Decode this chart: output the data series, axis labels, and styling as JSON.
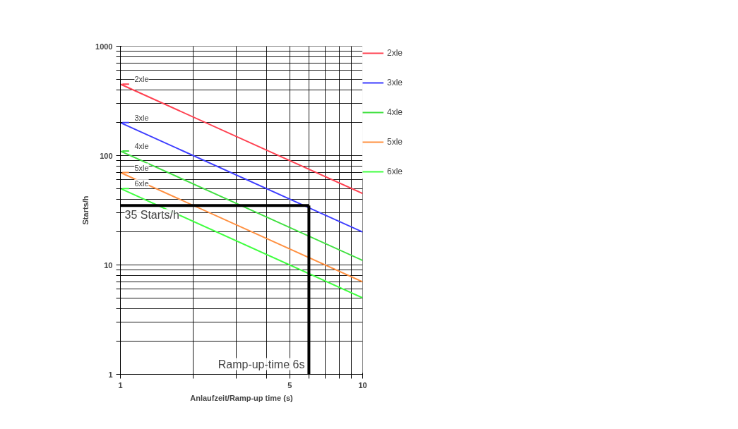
{
  "chart_data": {
    "type": "line",
    "xlabel": "Anlaufzeit/Ramp-up time (s)",
    "ylabel": "Starts/h",
    "log": "xy",
    "grid": true,
    "legend": "right",
    "marker": "none",
    "line_style": "solid",
    "x": [
      1,
      10
    ],
    "series": [
      {
        "name": "2xle",
        "color": "#ff4050",
        "values": [
          450,
          45
        ]
      },
      {
        "name": "3xle",
        "color": "#3c3cff",
        "values": [
          200,
          20
        ]
      },
      {
        "name": "4xle",
        "color": "#40e040",
        "values": [
          110,
          11
        ]
      },
      {
        "name": "5xle",
        "color": "#ff9040",
        "values": [
          70,
          7
        ]
      },
      {
        "name": "6xle",
        "color": "#40ff40",
        "values": [
          50,
          5
        ]
      }
    ],
    "xlim": [
      1,
      10
    ],
    "ylim": [
      1,
      1000
    ],
    "xticks": [
      1,
      {
        "value": 2,
        "label": null
      },
      {
        "value": 3,
        "label": null
      },
      {
        "value": 4,
        "label": null
      },
      5,
      {
        "value": 6,
        "label": null
      },
      {
        "value": 7,
        "label": null
      },
      {
        "value": 8,
        "label": null
      },
      {
        "value": 9,
        "label": null
      },
      10
    ],
    "yticks": [
      1,
      {
        "value": 2,
        "label": null
      },
      {
        "value": 3,
        "label": null
      },
      {
        "value": 4,
        "label": null
      },
      {
        "value": 5,
        "label": null
      },
      {
        "value": 6,
        "label": null
      },
      {
        "value": 7,
        "label": null
      },
      {
        "value": 8,
        "label": null
      },
      {
        "value": 9,
        "label": null
      },
      10,
      {
        "value": 20,
        "label": null
      },
      {
        "value": 30,
        "label": null
      },
      {
        "value": 40,
        "label": null
      },
      {
        "value": 50,
        "label": null
      },
      {
        "value": 60,
        "label": null
      },
      {
        "value": 70,
        "label": null
      },
      {
        "value": 80,
        "label": null
      },
      {
        "value": 90,
        "label": null
      },
      100,
      {
        "value": 200,
        "label": null
      },
      {
        "value": 300,
        "label": null
      },
      {
        "value": 400,
        "label": null
      },
      {
        "value": 500,
        "label": null
      },
      {
        "value": 600,
        "label": null
      },
      {
        "value": 700,
        "label": null
      },
      {
        "value": 800,
        "label": null
      },
      {
        "value": 900,
        "label": null
      },
      1000
    ],
    "ref_lines": [
      {
        "axis": "y",
        "value": 35,
        "label": "35 Starts/h",
        "color": "#000000"
      },
      {
        "axis": "x",
        "value": 6,
        "label": "Ramp-up-time 6s",
        "color": "#000000"
      }
    ],
    "annotations": [
      "2xle",
      "3xle",
      "4xle",
      "5xle",
      "6xle"
    ]
  }
}
